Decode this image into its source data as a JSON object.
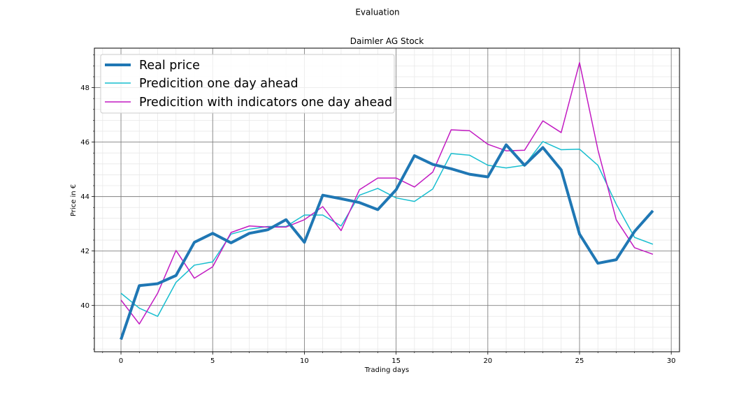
{
  "figure": {
    "suptitle": "Evaluation"
  },
  "chart_data": {
    "type": "line",
    "title": "Daimler AG Stock",
    "xlabel": "Trading days",
    "ylabel": "Price in €",
    "xlim": [
      -1.45,
      30.45
    ],
    "ylim": [
      38.3,
      49.45
    ],
    "xticks": [
      0,
      5,
      10,
      15,
      20,
      25,
      30
    ],
    "yticks": [
      40,
      42,
      44,
      46,
      48
    ],
    "grid": {
      "major": true,
      "minor": true
    },
    "legend": {
      "position": "top-left"
    },
    "x": [
      0,
      1,
      2,
      3,
      4,
      5,
      6,
      7,
      8,
      9,
      10,
      11,
      12,
      13,
      14,
      15,
      16,
      17,
      18,
      19,
      20,
      21,
      22,
      23,
      24,
      25,
      26,
      27,
      28,
      29
    ],
    "series": [
      {
        "name": "Real price",
        "color": "#1f77b4",
        "width": 4,
        "values": [
          38.75,
          40.73,
          40.8,
          41.1,
          42.32,
          42.65,
          42.3,
          42.65,
          42.78,
          43.15,
          42.32,
          44.05,
          43.92,
          43.78,
          43.52,
          44.25,
          45.5,
          45.18,
          45.02,
          44.82,
          44.72,
          45.9,
          45.15,
          45.8,
          44.98,
          42.62,
          41.55,
          41.68,
          42.72,
          43.48
        ]
      },
      {
        "name": "Predicition one day ahead",
        "color": "#17becf",
        "width": 1.5,
        "values": [
          40.45,
          39.9,
          39.6,
          40.85,
          41.48,
          41.6,
          42.62,
          42.8,
          42.9,
          42.9,
          43.32,
          43.32,
          42.92,
          44.05,
          44.3,
          43.95,
          43.82,
          44.28,
          45.58,
          45.52,
          45.15,
          45.05,
          45.15,
          46.02,
          45.72,
          45.74,
          45.15,
          43.72,
          42.5,
          42.25
        ]
      },
      {
        "name": "Predicition with indicators one day ahead",
        "color": "#c21ac2",
        "width": 1.5,
        "values": [
          40.2,
          39.32,
          40.45,
          42.02,
          41.0,
          41.42,
          42.68,
          42.92,
          42.88,
          42.88,
          43.15,
          43.63,
          42.75,
          44.25,
          44.68,
          44.68,
          44.35,
          44.9,
          46.45,
          46.42,
          45.92,
          45.68,
          45.7,
          46.78,
          46.35,
          48.92,
          45.72,
          43.15,
          42.12,
          41.88
        ]
      }
    ]
  }
}
